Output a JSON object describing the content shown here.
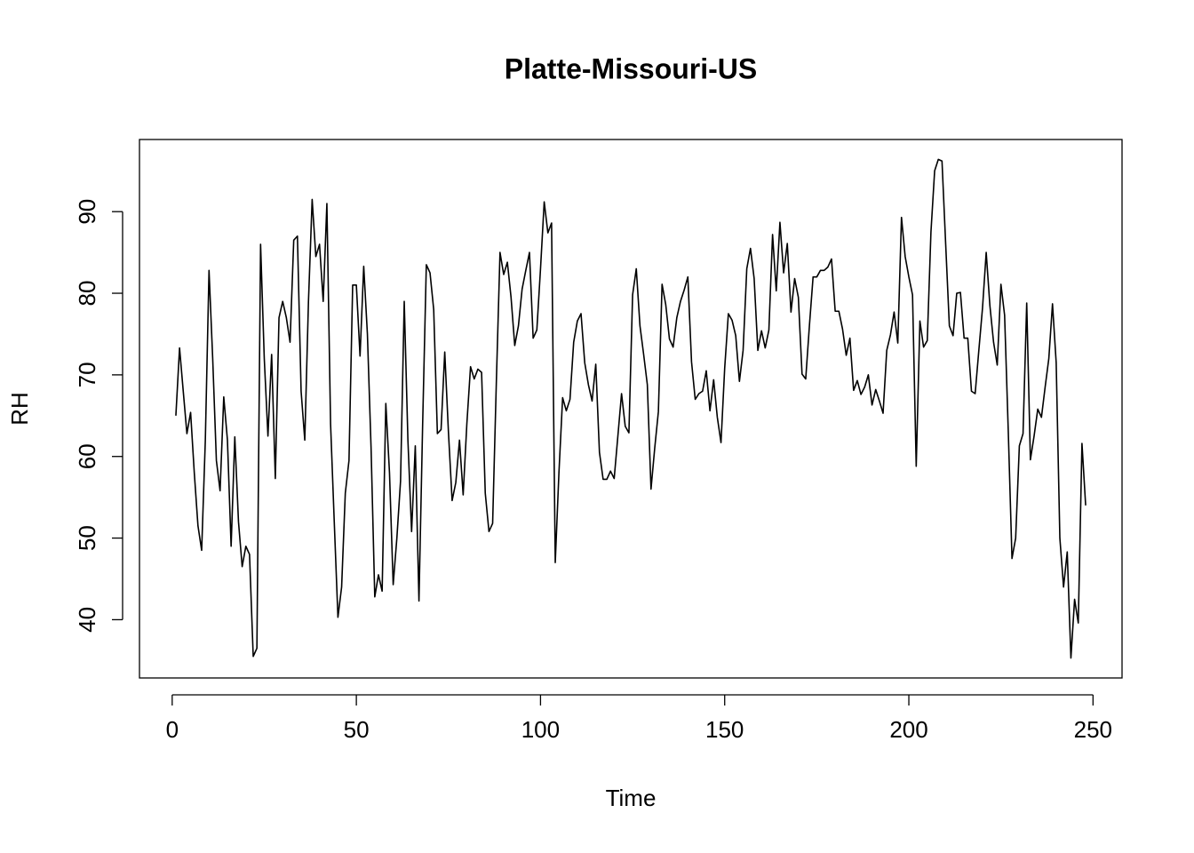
{
  "chart_data": {
    "type": "line",
    "title": "Platte-Missouri-US",
    "x_label": "Time",
    "y_label": "RH",
    "color": "#000000",
    "x": [
      1,
      2,
      3,
      4,
      5,
      6,
      7,
      8,
      9,
      10,
      11,
      12,
      13,
      14,
      15,
      16,
      17,
      18,
      19,
      20,
      21,
      22,
      23,
      24,
      25,
      26,
      27,
      28,
      29,
      30,
      31,
      32,
      33,
      34,
      35,
      36,
      37,
      38,
      39,
      40,
      41,
      42,
      43,
      44,
      45,
      46,
      47,
      48,
      49,
      50,
      51,
      52,
      53,
      54,
      55,
      56,
      57,
      58,
      59,
      60,
      61,
      62,
      63,
      64,
      65,
      66,
      67,
      68,
      69,
      70,
      71,
      72,
      73,
      74,
      75,
      76,
      77,
      78,
      79,
      80,
      81,
      82,
      83,
      84,
      85,
      86,
      87,
      88,
      89,
      90,
      91,
      92,
      93,
      94,
      95,
      96,
      97,
      98,
      99,
      100,
      101,
      102,
      103,
      104,
      105,
      106,
      107,
      108,
      109,
      110,
      111,
      112,
      113,
      114,
      115,
      116,
      117,
      118,
      119,
      120,
      121,
      122,
      123,
      124,
      125,
      126,
      127,
      128,
      129,
      130,
      131,
      132,
      133,
      134,
      135,
      136,
      137,
      138,
      139,
      140,
      141,
      142,
      143,
      144,
      145,
      146,
      147,
      148,
      149,
      150,
      151,
      152,
      153,
      154,
      155,
      156,
      157,
      158,
      159,
      160,
      161,
      162,
      163,
      164,
      165,
      166,
      167,
      168,
      169,
      170,
      171,
      172,
      173,
      174,
      175,
      176,
      177,
      178,
      179,
      180,
      181,
      182,
      183,
      184,
      185,
      186,
      187,
      188,
      189,
      190,
      191,
      192,
      193,
      194,
      195,
      196,
      197,
      198,
      199,
      200,
      201,
      202,
      203,
      204,
      205,
      206,
      207,
      208,
      209,
      210,
      211,
      212,
      213,
      214,
      215,
      216,
      217,
      218,
      219,
      220,
      221,
      222,
      223,
      224,
      225,
      226,
      227,
      228,
      229,
      230,
      231,
      232,
      233,
      234,
      235,
      236,
      237,
      238,
      239,
      240,
      241,
      242,
      243,
      244,
      245,
      246,
      247,
      248
    ],
    "values": [
      65,
      73.3,
      68,
      62.8,
      65.4,
      58,
      51.5,
      48.5,
      62,
      82.8,
      72,
      59.5,
      55.8,
      67.3,
      62,
      49,
      62.4,
      52,
      46.5,
      49,
      48,
      35.5,
      36.5,
      86,
      72,
      62.5,
      72.5,
      57.3,
      77,
      79,
      77,
      74,
      86.5,
      87,
      68,
      62,
      79,
      91.5,
      84.5,
      86,
      79,
      91,
      64,
      52,
      40.3,
      44,
      55.5,
      59.5,
      81,
      81,
      72.3,
      83.3,
      75,
      61,
      42.8,
      45.5,
      43.5,
      66.5,
      58,
      44.3,
      50,
      57,
      79,
      62,
      50.8,
      61.3,
      42.3,
      64,
      83.5,
      82.5,
      78,
      62.8,
      63.3,
      72.8,
      63,
      54.6,
      56.8,
      62,
      55.3,
      64,
      71,
      69.5,
      70.7,
      70.3,
      55.5,
      50.8,
      51.8,
      69,
      85,
      82.3,
      83.8,
      79.5,
      73.6,
      76,
      80.5,
      82.8,
      85,
      74.5,
      75.5,
      83,
      91.2,
      87.4,
      88.6,
      47,
      58,
      67.2,
      65.6,
      67,
      74,
      76.6,
      77.5,
      71.5,
      68.8,
      66.8,
      71.3,
      60.5,
      57.2,
      57.2,
      58.2,
      57.3,
      62.5,
      67.7,
      63.7,
      62.9,
      79.8,
      83,
      76,
      72.5,
      68.8,
      56,
      61,
      65.5,
      81.1,
      78.6,
      74.4,
      73.4,
      77,
      79,
      80.4,
      82,
      71.6,
      67,
      67.7,
      68,
      70.5,
      65.6,
      69.4,
      64.8,
      61.7,
      70.8,
      77.5,
      76.7,
      74.8,
      69.2,
      73,
      83,
      85.5,
      81.8,
      73,
      75.4,
      73.3,
      75.5,
      87.2,
      80.3,
      88.7,
      82.5,
      86.1,
      77.7,
      81.8,
      79.5,
      70.1,
      69.5,
      76,
      82,
      82,
      82.8,
      82.8,
      83.2,
      84.2,
      77.8,
      77.8,
      75.6,
      72.4,
      74.5,
      68.1,
      69.3,
      67.6,
      68.5,
      70,
      66.3,
      68.2,
      66.8,
      65.3,
      73,
      74.9,
      77.7,
      73.9,
      89.3,
      84.5,
      82,
      79.8,
      58.8,
      76.6,
      73.4,
      74.2,
      87.5,
      95,
      96.4,
      96.2,
      86,
      76,
      74.8,
      80,
      80.1,
      74.5,
      74.5,
      68,
      67.7,
      73,
      78.2,
      85,
      78.5,
      74,
      71.2,
      81.1,
      77.3,
      63,
      47.5,
      50,
      61.3,
      62.8,
      78.8,
      59.6,
      62.5,
      65.8,
      64.8,
      68.5,
      72,
      78.7,
      71.5,
      50,
      44,
      48.3,
      35.3,
      42.5,
      39.6,
      61.6,
      54
    ],
    "xlim": [
      -8.88,
      257.88
    ],
    "ylim": [
      32.86,
      98.84
    ],
    "xticks": [
      0,
      50,
      100,
      150,
      200,
      250
    ],
    "yticks": [
      40,
      50,
      60,
      70,
      80,
      90
    ]
  }
}
